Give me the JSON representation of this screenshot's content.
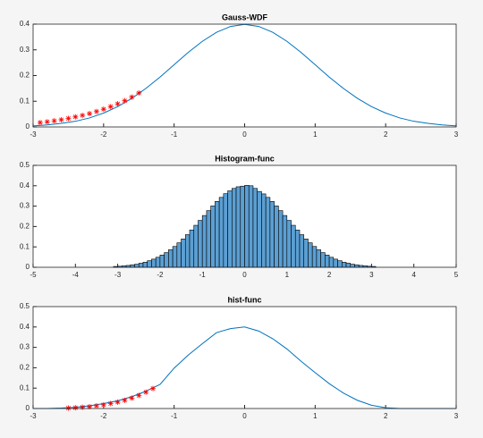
{
  "chart_data": [
    {
      "type": "line",
      "title": "Gauss-WDF",
      "x": [
        -3,
        -2.8,
        -2.6,
        -2.4,
        -2.2,
        -2,
        -1.8,
        -1.6,
        -1.4,
        -1.2,
        -1,
        -0.8,
        -0.6,
        -0.4,
        -0.2,
        0,
        0.2,
        0.4,
        0.6,
        0.8,
        1,
        1.2,
        1.4,
        1.6,
        1.8,
        2,
        2.2,
        2.4,
        2.6,
        2.8,
        3
      ],
      "series": [
        {
          "color": "#0072bd",
          "values": [
            0.004,
            0.008,
            0.014,
            0.022,
            0.035,
            0.054,
            0.079,
            0.111,
            0.15,
            0.194,
            0.242,
            0.29,
            0.333,
            0.368,
            0.391,
            0.399,
            0.391,
            0.368,
            0.333,
            0.29,
            0.242,
            0.194,
            0.15,
            0.111,
            0.079,
            0.054,
            0.035,
            0.022,
            0.014,
            0.008,
            0.004
          ]
        },
        {
          "color": "#ff0000",
          "marker": "*",
          "line": false,
          "x": [
            -2.9,
            -2.8,
            -2.7,
            -2.6,
            -2.5,
            -2.4,
            -2.3,
            -2.2,
            -2.1,
            -2.0,
            -1.9,
            -1.8,
            -1.7,
            -1.6,
            -1.5
          ],
          "values": [
            0.017,
            0.02,
            0.024,
            0.028,
            0.033,
            0.039,
            0.045,
            0.052,
            0.06,
            0.069,
            0.079,
            0.09,
            0.102,
            0.116,
            0.132
          ]
        }
      ],
      "xlim": [
        -3,
        3
      ],
      "xticks": [
        -3,
        -2,
        -1,
        0,
        1,
        2,
        3
      ],
      "ylim": [
        0,
        0.4
      ],
      "yticks": [
        0,
        0.1,
        0.2,
        0.3,
        0.4
      ]
    },
    {
      "type": "histogram",
      "title": "Histogram-func",
      "color": "#5b9fd3",
      "edgecolor": "#000000",
      "bins": [
        -3.1,
        -3.0,
        -2.9,
        -2.8,
        -2.7,
        -2.6,
        -2.5,
        -2.4,
        -2.3,
        -2.2,
        -2.1,
        -2.0,
        -1.9,
        -1.8,
        -1.7,
        -1.6,
        -1.5,
        -1.4,
        -1.3,
        -1.2,
        -1.1,
        -1.0,
        -0.9,
        -0.8,
        -0.7,
        -0.6,
        -0.5,
        -0.4,
        -0.3,
        -0.2,
        -0.1,
        0,
        0.1,
        0.2,
        0.3,
        0.4,
        0.5,
        0.6,
        0.7,
        0.8,
        0.9,
        1.0,
        1.1,
        1.2,
        1.3,
        1.4,
        1.5,
        1.6,
        1.7,
        1.8,
        1.9,
        2.0,
        2.1,
        2.2,
        2.3,
        2.4,
        2.5,
        2.6,
        2.7,
        2.8,
        2.9,
        3.0,
        3.1
      ],
      "values": [
        0.004,
        0.005,
        0.007,
        0.009,
        0.012,
        0.015,
        0.02,
        0.025,
        0.032,
        0.04,
        0.049,
        0.06,
        0.072,
        0.086,
        0.102,
        0.12,
        0.139,
        0.16,
        0.183,
        0.206,
        0.23,
        0.254,
        0.278,
        0.301,
        0.323,
        0.343,
        0.361,
        0.375,
        0.387,
        0.395,
        0.398,
        0.402,
        0.4,
        0.387,
        0.372,
        0.36,
        0.343,
        0.323,
        0.301,
        0.278,
        0.254,
        0.23,
        0.206,
        0.183,
        0.16,
        0.139,
        0.12,
        0.102,
        0.086,
        0.072,
        0.06,
        0.049,
        0.04,
        0.032,
        0.025,
        0.02,
        0.015,
        0.012,
        0.009,
        0.007,
        0.005,
        0.004
      ],
      "xlim": [
        -5,
        5
      ],
      "xticks": [
        -5,
        -4,
        -3,
        -2,
        -1,
        0,
        1,
        2,
        3,
        4,
        5
      ],
      "ylim": [
        0,
        0.5
      ],
      "yticks": [
        0,
        0.1,
        0.2,
        0.3,
        0.4,
        0.5
      ]
    },
    {
      "type": "line",
      "title": "hist-func",
      "x": [
        -3,
        -2.8,
        -2.6,
        -2.4,
        -2.2,
        -2,
        -1.8,
        -1.6,
        -1.4,
        -1.2,
        -1,
        -0.8,
        -0.6,
        -0.4,
        -0.2,
        0,
        0.2,
        0.4,
        0.6,
        0.8,
        1,
        1.2,
        1.4,
        1.6,
        1.8,
        2,
        2.2,
        2.4,
        2.6,
        2.8,
        3
      ],
      "series": [
        {
          "color": "#0072bd",
          "values": [
            0,
            0,
            0.002,
            0.006,
            0.013,
            0.024,
            0.038,
            0.058,
            0.085,
            0.118,
            0.198,
            0.262,
            0.318,
            0.372,
            0.392,
            0.4,
            0.38,
            0.342,
            0.292,
            0.232,
            0.176,
            0.122,
            0.076,
            0.04,
            0.016,
            0.004,
            0,
            0,
            0,
            0,
            0
          ]
        },
        {
          "color": "#ff0000",
          "marker": "*",
          "line": false,
          "x": [
            -2.5,
            -2.4,
            -2.3,
            -2.2,
            -2.1,
            -2.0,
            -1.9,
            -1.8,
            -1.7,
            -1.6,
            -1.5,
            -1.4,
            -1.3
          ],
          "values": [
            0.002,
            0.004,
            0.006,
            0.009,
            0.013,
            0.018,
            0.024,
            0.031,
            0.04,
            0.051,
            0.064,
            0.08,
            0.098
          ]
        }
      ],
      "xlim": [
        -3,
        3
      ],
      "xticks": [
        -3,
        -2,
        -1,
        0,
        1,
        2,
        3
      ],
      "ylim": [
        0,
        0.5
      ],
      "yticks": [
        0,
        0.1,
        0.2,
        0.3,
        0.4,
        0.5
      ]
    }
  ]
}
